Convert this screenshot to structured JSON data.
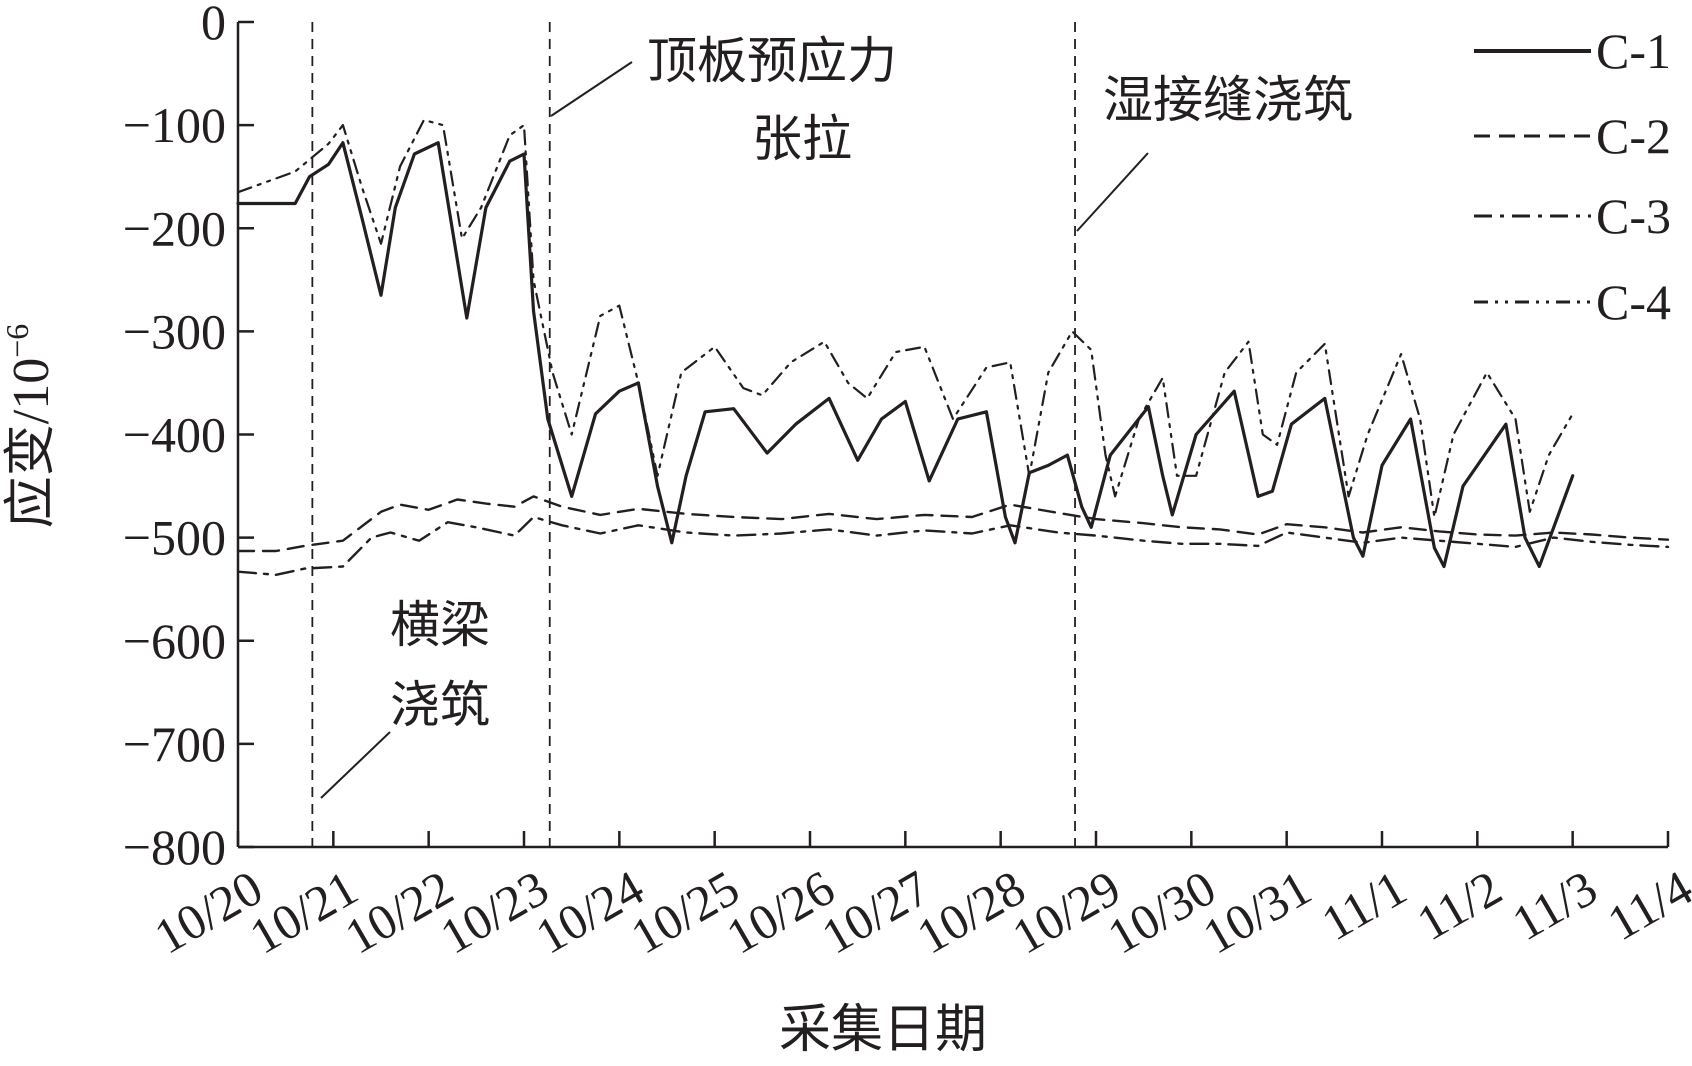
{
  "chart_data": {
    "type": "line",
    "xlabel": "采集日期",
    "ylabel": "应变/10",
    "ylabel_exponent": "−6",
    "ylim": [
      -800,
      0
    ],
    "yticks": [
      0,
      -100,
      -200,
      -300,
      -400,
      -500,
      -600,
      -700,
      -800
    ],
    "ytick_labels": [
      "0",
      "−100",
      "−200",
      "−300",
      "−400",
      "−500",
      "−600",
      "−700",
      "−800"
    ],
    "xlim": [
      0,
      15
    ],
    "x_categories": [
      "10/20",
      "10/21",
      "10/22",
      "10/23",
      "10/24",
      "10/25",
      "10/26",
      "10/27",
      "10/28",
      "10/29",
      "10/30",
      "10/31",
      "11/1",
      "11/2",
      "11/3",
      "11/4"
    ],
    "grid": false,
    "legend_position": "top-right",
    "series": [
      {
        "name": "C-1",
        "style": "solid",
        "points": [
          [
            0,
            -176
          ],
          [
            0.6,
            -176
          ],
          [
            0.75,
            -150
          ],
          [
            0.95,
            -138
          ],
          [
            1.1,
            -117
          ],
          [
            1.3,
            -190
          ],
          [
            1.5,
            -265
          ],
          [
            1.65,
            -180
          ],
          [
            1.85,
            -128
          ],
          [
            2.1,
            -117
          ],
          [
            2.4,
            -287
          ],
          [
            2.6,
            -180
          ],
          [
            2.85,
            -135
          ],
          [
            3.0,
            -128
          ],
          [
            3.1,
            -280
          ],
          [
            3.25,
            -385
          ],
          [
            3.5,
            -460
          ],
          [
            3.75,
            -380
          ],
          [
            4.0,
            -358
          ],
          [
            4.2,
            -350
          ],
          [
            4.4,
            -450
          ],
          [
            4.55,
            -505
          ],
          [
            4.7,
            -440
          ],
          [
            4.9,
            -378
          ],
          [
            5.2,
            -375
          ],
          [
            5.55,
            -418
          ],
          [
            5.85,
            -390
          ],
          [
            6.2,
            -365
          ],
          [
            6.5,
            -425
          ],
          [
            6.75,
            -385
          ],
          [
            7.0,
            -368
          ],
          [
            7.25,
            -445
          ],
          [
            7.55,
            -385
          ],
          [
            7.85,
            -378
          ],
          [
            8.05,
            -480
          ],
          [
            8.15,
            -505
          ],
          [
            8.3,
            -437
          ],
          [
            8.5,
            -430
          ],
          [
            8.7,
            -420
          ],
          [
            8.85,
            -470
          ],
          [
            8.95,
            -490
          ],
          [
            9.15,
            -420
          ],
          [
            9.55,
            -373
          ],
          [
            9.7,
            -440
          ],
          [
            9.8,
            -478
          ],
          [
            10.05,
            -400
          ],
          [
            10.45,
            -358
          ],
          [
            10.7,
            -460
          ],
          [
            10.85,
            -455
          ],
          [
            11.05,
            -390
          ],
          [
            11.4,
            -365
          ],
          [
            11.7,
            -500
          ],
          [
            11.8,
            -518
          ],
          [
            12.0,
            -430
          ],
          [
            12.3,
            -385
          ],
          [
            12.55,
            -510
          ],
          [
            12.65,
            -528
          ],
          [
            12.85,
            -450
          ],
          [
            13.3,
            -390
          ],
          [
            13.5,
            -500
          ],
          [
            13.65,
            -528
          ],
          [
            14.0,
            -440
          ]
        ]
      },
      {
        "name": "C-2",
        "style": "dashed",
        "points": [
          [
            0,
            -513
          ],
          [
            0.4,
            -513
          ],
          [
            0.7,
            -508
          ],
          [
            1.1,
            -503
          ],
          [
            1.5,
            -475
          ],
          [
            1.7,
            -468
          ],
          [
            2.0,
            -473
          ],
          [
            2.3,
            -463
          ],
          [
            2.6,
            -467
          ],
          [
            2.9,
            -470
          ],
          [
            3.1,
            -460
          ],
          [
            3.4,
            -470
          ],
          [
            3.8,
            -478
          ],
          [
            4.2,
            -472
          ],
          [
            4.7,
            -477
          ],
          [
            5.2,
            -480
          ],
          [
            5.7,
            -482
          ],
          [
            6.2,
            -477
          ],
          [
            6.7,
            -482
          ],
          [
            7.2,
            -478
          ],
          [
            7.7,
            -480
          ],
          [
            8.1,
            -468
          ],
          [
            8.6,
            -476
          ],
          [
            9.0,
            -482
          ],
          [
            9.5,
            -486
          ],
          [
            9.9,
            -490
          ],
          [
            10.3,
            -492
          ],
          [
            10.7,
            -497
          ],
          [
            11.0,
            -487
          ],
          [
            11.4,
            -490
          ],
          [
            11.8,
            -495
          ],
          [
            12.2,
            -490
          ],
          [
            12.6,
            -494
          ],
          [
            13.0,
            -497
          ],
          [
            13.4,
            -498
          ],
          [
            13.8,
            -495
          ],
          [
            14.2,
            -497
          ],
          [
            14.6,
            -500
          ],
          [
            15.0,
            -502
          ]
        ]
      },
      {
        "name": "C-3",
        "style": "dashdot",
        "points": [
          [
            0,
            -533
          ],
          [
            0.4,
            -536
          ],
          [
            0.7,
            -530
          ],
          [
            1.1,
            -528
          ],
          [
            1.4,
            -500
          ],
          [
            1.6,
            -495
          ],
          [
            1.9,
            -503
          ],
          [
            2.2,
            -485
          ],
          [
            2.5,
            -490
          ],
          [
            2.9,
            -498
          ],
          [
            3.1,
            -480
          ],
          [
            3.4,
            -488
          ],
          [
            3.8,
            -496
          ],
          [
            4.2,
            -488
          ],
          [
            4.7,
            -495
          ],
          [
            5.2,
            -498
          ],
          [
            5.7,
            -496
          ],
          [
            6.2,
            -492
          ],
          [
            6.7,
            -498
          ],
          [
            7.2,
            -493
          ],
          [
            7.7,
            -496
          ],
          [
            8.1,
            -488
          ],
          [
            8.6,
            -495
          ],
          [
            9.0,
            -498
          ],
          [
            9.5,
            -503
          ],
          [
            9.9,
            -506
          ],
          [
            10.3,
            -506
          ],
          [
            10.7,
            -508
          ],
          [
            11.0,
            -495
          ],
          [
            11.4,
            -500
          ],
          [
            11.8,
            -505
          ],
          [
            12.2,
            -500
          ],
          [
            12.6,
            -503
          ],
          [
            13.0,
            -506
          ],
          [
            13.4,
            -509
          ],
          [
            13.8,
            -500
          ],
          [
            14.2,
            -504
          ],
          [
            14.6,
            -507
          ],
          [
            15.0,
            -509
          ]
        ]
      },
      {
        "name": "C-4",
        "style": "dashdotdot",
        "points": [
          [
            0,
            -165
          ],
          [
            0.6,
            -145
          ],
          [
            0.95,
            -118
          ],
          [
            1.1,
            -100
          ],
          [
            1.3,
            -160
          ],
          [
            1.5,
            -215
          ],
          [
            1.7,
            -140
          ],
          [
            1.95,
            -95
          ],
          [
            2.15,
            -100
          ],
          [
            2.35,
            -210
          ],
          [
            2.55,
            -180
          ],
          [
            2.85,
            -110
          ],
          [
            3.0,
            -100
          ],
          [
            3.1,
            -250
          ],
          [
            3.3,
            -340
          ],
          [
            3.5,
            -400
          ],
          [
            3.8,
            -285
          ],
          [
            4.0,
            -275
          ],
          [
            4.2,
            -350
          ],
          [
            4.4,
            -440
          ],
          [
            4.65,
            -340
          ],
          [
            5.0,
            -315
          ],
          [
            5.3,
            -355
          ],
          [
            5.5,
            -362
          ],
          [
            5.8,
            -330
          ],
          [
            6.15,
            -310
          ],
          [
            6.4,
            -350
          ],
          [
            6.6,
            -365
          ],
          [
            6.9,
            -320
          ],
          [
            7.2,
            -315
          ],
          [
            7.5,
            -385
          ],
          [
            7.85,
            -335
          ],
          [
            8.1,
            -330
          ],
          [
            8.3,
            -440
          ],
          [
            8.5,
            -340
          ],
          [
            8.75,
            -300
          ],
          [
            8.95,
            -318
          ],
          [
            9.1,
            -420
          ],
          [
            9.2,
            -460
          ],
          [
            9.45,
            -385
          ],
          [
            9.7,
            -345
          ],
          [
            9.85,
            -440
          ],
          [
            10.05,
            -440
          ],
          [
            10.35,
            -340
          ],
          [
            10.6,
            -310
          ],
          [
            10.75,
            -400
          ],
          [
            10.9,
            -410
          ],
          [
            11.1,
            -340
          ],
          [
            11.4,
            -312
          ],
          [
            11.65,
            -460
          ],
          [
            11.85,
            -400
          ],
          [
            12.2,
            -322
          ],
          [
            12.4,
            -385
          ],
          [
            12.55,
            -480
          ],
          [
            12.75,
            -400
          ],
          [
            13.1,
            -340
          ],
          [
            13.4,
            -385
          ],
          [
            13.55,
            -475
          ],
          [
            13.75,
            -420
          ],
          [
            14.0,
            -380
          ]
        ]
      }
    ],
    "event_lines_x": [
      0.78,
      3.27,
      8.78
    ],
    "annotations": [
      {
        "lines": [
          "顶板预应力",
          "张拉"
        ]
      },
      {
        "lines": [
          "湿接缝浇筑"
        ]
      },
      {
        "lines": [
          "横梁",
          "浇筑"
        ]
      }
    ]
  }
}
